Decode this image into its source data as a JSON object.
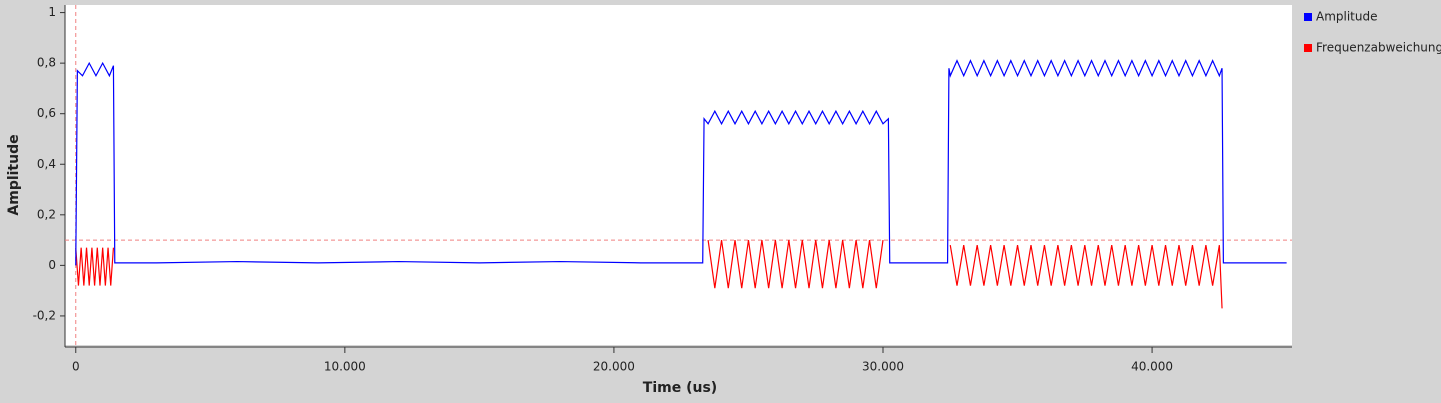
{
  "chart_data": {
    "type": "line",
    "xlabel": "Time (us)",
    "ylabel": "Amplitude",
    "xlim": [
      -400,
      45200
    ],
    "ylim": [
      -0.315,
      1.03
    ],
    "xticks": [
      0,
      {
        "value": 10000,
        "label": "10.000"
      },
      {
        "value": 20000,
        "label": "20.000"
      },
      {
        "value": 30000,
        "label": "30.000"
      },
      {
        "value": 40000,
        "label": "40.000"
      }
    ],
    "yticks": [
      {
        "value": -0.2,
        "label": "-0,2"
      },
      0,
      {
        "value": 0.2,
        "label": "0,2"
      },
      {
        "value": 0.4,
        "label": "0,4"
      },
      {
        "value": 0.6,
        "label": "0,6"
      },
      {
        "value": 0.8,
        "label": "0,8"
      },
      1
    ],
    "legend": "right",
    "trigger": {
      "level": 0.1,
      "time": 0,
      "color": "#f08080"
    },
    "series": [
      {
        "name": "Amplitude",
        "color": "#0000ff",
        "x": [
          0,
          60,
          250,
          500,
          750,
          1000,
          1250,
          1400,
          1450,
          3000,
          6000,
          9000,
          12000,
          15000,
          18000,
          21000,
          23300,
          23350,
          23500,
          23750,
          24000,
          24250,
          24500,
          24750,
          25000,
          25250,
          25500,
          25750,
          26000,
          26250,
          26500,
          26750,
          27000,
          27250,
          27500,
          27750,
          28000,
          28250,
          28500,
          28750,
          29000,
          29250,
          29500,
          29750,
          30000,
          30200,
          30250,
          32400,
          32450,
          32500,
          32750,
          33000,
          33250,
          33500,
          33750,
          34000,
          34250,
          34500,
          34750,
          35000,
          35250,
          35500,
          35750,
          36000,
          36250,
          36500,
          36750,
          37000,
          37250,
          37500,
          37750,
          38000,
          38250,
          38500,
          38750,
          39000,
          39250,
          39500,
          39750,
          40000,
          40250,
          40500,
          40750,
          41000,
          41250,
          41500,
          41750,
          42000,
          42250,
          42500,
          42600,
          42650,
          45000
        ],
        "values": [
          0,
          0.77,
          0.75,
          0.8,
          0.75,
          0.8,
          0.75,
          0.79,
          0.01,
          0.01,
          0.015,
          0.01,
          0.015,
          0.01,
          0.015,
          0.01,
          0.01,
          0.58,
          0.56,
          0.61,
          0.56,
          0.61,
          0.56,
          0.61,
          0.56,
          0.61,
          0.56,
          0.61,
          0.56,
          0.61,
          0.56,
          0.61,
          0.56,
          0.61,
          0.56,
          0.61,
          0.56,
          0.61,
          0.56,
          0.61,
          0.56,
          0.61,
          0.56,
          0.61,
          0.56,
          0.58,
          0.01,
          0.01,
          0.78,
          0.75,
          0.81,
          0.75,
          0.81,
          0.75,
          0.81,
          0.75,
          0.81,
          0.75,
          0.81,
          0.75,
          0.81,
          0.75,
          0.81,
          0.75,
          0.81,
          0.75,
          0.81,
          0.75,
          0.81,
          0.75,
          0.81,
          0.75,
          0.81,
          0.75,
          0.81,
          0.75,
          0.81,
          0.75,
          0.81,
          0.75,
          0.81,
          0.75,
          0.81,
          0.75,
          0.81,
          0.75,
          0.81,
          0.75,
          0.81,
          0.75,
          0.78,
          0.01,
          0.01
        ]
      },
      {
        "name": "Frequenzabweichung",
        "color": "#ff0000",
        "x": [
          0,
          100,
          200,
          300,
          400,
          500,
          600,
          700,
          800,
          900,
          1000,
          1100,
          1200,
          1300,
          1400,
          1450,
          23500,
          23750,
          24000,
          24250,
          24500,
          24750,
          25000,
          25250,
          25500,
          25750,
          26000,
          26250,
          26500,
          26750,
          27000,
          27250,
          27500,
          27750,
          28000,
          28250,
          28500,
          28750,
          29000,
          29250,
          29500,
          29750,
          30000,
          30100,
          32500,
          32750,
          33000,
          33250,
          33500,
          33750,
          34000,
          34250,
          34500,
          34750,
          35000,
          35250,
          35500,
          35750,
          36000,
          36250,
          36500,
          36750,
          37000,
          37250,
          37500,
          37750,
          38000,
          38250,
          38500,
          38750,
          39000,
          39250,
          39500,
          39750,
          40000,
          40250,
          40500,
          40750,
          41000,
          41250,
          41500,
          41750,
          42000,
          42250,
          42500,
          42600
        ],
        "values": [
          0.07,
          -0.08,
          0.07,
          -0.08,
          0.07,
          -0.08,
          0.07,
          -0.08,
          0.07,
          -0.08,
          0.07,
          -0.08,
          0.07,
          -0.08,
          0.07,
          null,
          0.1,
          -0.09,
          0.1,
          -0.09,
          0.1,
          -0.09,
          0.1,
          -0.09,
          0.1,
          -0.09,
          0.1,
          -0.09,
          0.1,
          -0.09,
          0.1,
          -0.09,
          0.1,
          -0.09,
          0.1,
          -0.09,
          0.1,
          -0.09,
          0.1,
          -0.09,
          0.1,
          -0.09,
          0.1,
          null,
          0.08,
          -0.08,
          0.08,
          -0.08,
          0.08,
          -0.08,
          0.08,
          -0.08,
          0.08,
          -0.08,
          0.08,
          -0.08,
          0.08,
          -0.08,
          0.08,
          -0.08,
          0.08,
          -0.08,
          0.08,
          -0.08,
          0.08,
          -0.08,
          0.08,
          -0.08,
          0.08,
          -0.08,
          0.08,
          -0.08,
          0.08,
          -0.08,
          0.08,
          -0.08,
          0.08,
          -0.08,
          0.08,
          -0.08,
          0.08,
          -0.08,
          0.08,
          -0.08,
          0.08,
          -0.17
        ]
      }
    ]
  }
}
